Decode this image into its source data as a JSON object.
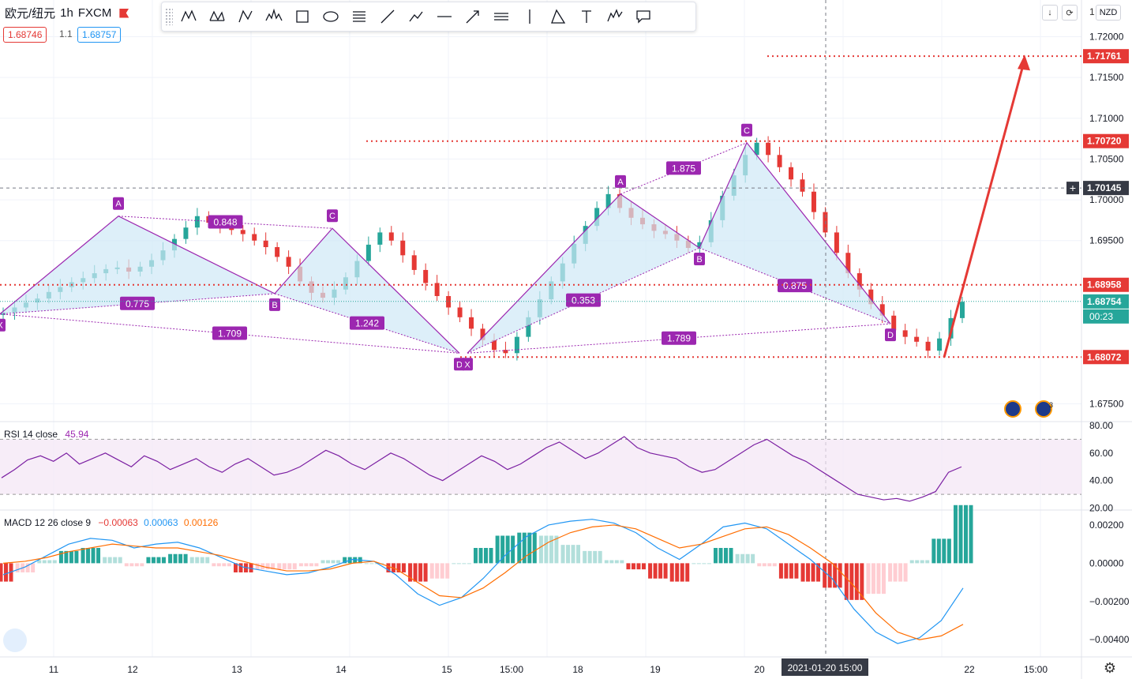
{
  "header": {
    "symbol": "欧元/纽元",
    "interval": "1h",
    "exchange": "FXCM",
    "bid": "1.68746",
    "spread": "1.1",
    "ask": "1.68757"
  },
  "toolbar": {
    "tools": [
      "xabcd-pattern-icon",
      "cypher-pattern-icon",
      "abcd-pattern-icon",
      "head-shoulders-icon",
      "rectangle-icon",
      "ellipse-icon",
      "fib-retracement-icon",
      "trend-line-icon",
      "path-icon",
      "horizontal-line-icon",
      "arrow-line-icon",
      "parallel-channel-icon",
      "vertical-line-icon",
      "triangle-pattern-icon",
      "text-icon",
      "elliott-wave-icon",
      "callout-icon"
    ]
  },
  "top_right": {
    "currency": "NZD",
    "partial_axis_label": "1"
  },
  "colors": {
    "purple": "#9c27b0",
    "purple_fill": "#cfe8f7",
    "red": "#e53935",
    "green": "#26a69a",
    "blue": "#2196f3",
    "orange": "#ff6d00",
    "axis_dark": "#363a45",
    "grid": "#f0f3fa"
  },
  "chart_data": [
    {
      "type": "candlestick",
      "title": "",
      "y_ticks": [
        "1.72000",
        "1.71500",
        "1.71000",
        "1.70500",
        "1.70000",
        "1.69500",
        "1.67500"
      ],
      "ylim": [
        1.673,
        1.7245
      ],
      "x_ticks": [
        "11",
        "12",
        "13",
        "14",
        "15",
        "15:00",
        "18",
        "19",
        "20",
        "22",
        "15:00"
      ],
      "price_labels": [
        {
          "value": 1.71761,
          "text": "1.71761",
          "color": "#e53935"
        },
        {
          "value": 1.7072,
          "text": "1.70720",
          "color": "#e53935"
        },
        {
          "value": 1.70145,
          "text": "1.70145",
          "color": "#363a45"
        },
        {
          "value": 1.68958,
          "text": "1.68958",
          "color": "#e53935"
        },
        {
          "value": 1.68754,
          "text": "1.68754",
          "color": "#26a69a"
        },
        {
          "value": 1.68072,
          "text": "1.68072",
          "color": "#e53935"
        }
      ],
      "countdown": "00:23",
      "crosshair_label": "2021-01-20   15:00",
      "series_close": [
        1.6862,
        1.6868,
        1.6874,
        1.6879,
        1.6887,
        1.6893,
        1.6899,
        1.6904,
        1.691,
        1.6915,
        1.6917,
        1.6912,
        1.6918,
        1.6926,
        1.6938,
        1.6952,
        1.6966,
        1.698,
        1.6972,
        1.6968,
        1.6963,
        1.6958,
        1.695,
        1.6942,
        1.693,
        1.6918,
        1.69,
        1.6886,
        1.688,
        1.689,
        1.6905,
        1.6925,
        1.6945,
        1.696,
        1.695,
        1.6932,
        1.6914,
        1.6898,
        1.6882,
        1.6868,
        1.6856,
        1.6842,
        1.6828,
        1.6816,
        1.6812,
        1.6832,
        1.6856,
        1.6878,
        1.69,
        1.6922,
        1.6946,
        1.6968,
        1.699,
        1.7007,
        1.699,
        1.6978,
        1.697,
        1.6962,
        1.6958,
        1.695,
        1.6941,
        1.6948,
        1.6975,
        1.7005,
        1.703,
        1.7055,
        1.707,
        1.7055,
        1.704,
        1.7025,
        1.701,
        1.6985,
        1.696,
        1.6935,
        1.691,
        1.689,
        1.6872,
        1.6858,
        1.684,
        1.6832,
        1.6826,
        1.6815,
        1.683,
        1.6855,
        1.6875
      ],
      "tick_values": [
        1.72,
        1.715,
        1.71,
        1.705,
        1.7,
        1.695,
        1.675
      ],
      "horizontal_lines": [
        1.7072,
        1.68958,
        1.68072,
        1.71761
      ],
      "patterns": [
        {
          "points": [
            [
              "X",
              1.686
            ],
            [
              "A",
              1.698
            ],
            [
              "B",
              1.6885
            ],
            [
              "C",
              1.6965
            ],
            [
              "D",
              1.6812
            ]
          ],
          "ratios": [
            {
              "text": "0.848"
            },
            {
              "text": "0.775"
            },
            {
              "text": "1.709"
            },
            {
              "text": "1.242"
            }
          ]
        },
        {
          "points": [
            [
              "X",
              1.6812
            ],
            [
              "A",
              1.7007
            ],
            [
              "B",
              1.6941
            ],
            [
              "C",
              1.707
            ],
            [
              "D",
              1.6848
            ]
          ],
          "ratios": [
            {
              "text": "1.875"
            },
            {
              "text": "0.353"
            },
            {
              "text": "1.789"
            },
            {
              "text": "0.875"
            }
          ]
        }
      ],
      "arrow": {
        "from": 1.6807,
        "to": 1.7176
      }
    },
    {
      "type": "line",
      "title": "RSI",
      "legend": {
        "name": "RSI",
        "params": "14 close",
        "value": "45.94"
      },
      "y_ticks": [
        "80.00",
        "60.00",
        "40.00",
        "20.00"
      ],
      "ylim": [
        20,
        80
      ],
      "band": [
        30,
        70
      ],
      "values": [
        42,
        48,
        55,
        58,
        54,
        60,
        52,
        56,
        60,
        55,
        50,
        58,
        54,
        48,
        52,
        56,
        50,
        46,
        52,
        56,
        50,
        44,
        46,
        50,
        56,
        62,
        58,
        52,
        48,
        54,
        60,
        56,
        50,
        44,
        40,
        46,
        52,
        58,
        54,
        48,
        52,
        58,
        64,
        68,
        62,
        56,
        60,
        66,
        72,
        64,
        60,
        58,
        56,
        50,
        46,
        48,
        54,
        60,
        66,
        70,
        64,
        58,
        54,
        48,
        42,
        36,
        30,
        28,
        26,
        27,
        25,
        28,
        32,
        46,
        50
      ]
    },
    {
      "type": "macd",
      "title": "MACD",
      "legend": {
        "name": "MACD",
        "params": "12 26 close 9",
        "values": [
          "−0.00063",
          "0.00063",
          "0.00126"
        ]
      },
      "y_ticks": [
        "0.00200",
        "0.00000",
        "−0.00200",
        "−0.00400"
      ],
      "ylim": [
        -0.0049,
        0.0027
      ],
      "macd": [
        -0.0006,
        -0.0002,
        0.0004,
        0.001,
        0.0013,
        0.0012,
        0.0008,
        0.001,
        0.0011,
        0.0008,
        0.0003,
        -0.0002,
        -0.0004,
        -0.0006,
        -0.0005,
        -0.0002,
        0.0002,
        0.0001,
        -0.0006,
        -0.0016,
        -0.0022,
        -0.0018,
        -0.0008,
        0.0004,
        0.0014,
        0.002,
        0.0022,
        0.0023,
        0.0021,
        0.0016,
        0.0008,
        0.0002,
        0.001,
        0.0019,
        0.0021,
        0.0018,
        0.001,
        0.0002,
        -0.0008,
        -0.0024,
        -0.0036,
        -0.0042,
        -0.0039,
        -0.003,
        -0.0013
      ],
      "signal": [
        0.0,
        0.0001,
        0.0003,
        0.0006,
        0.0008,
        0.001,
        0.0009,
        0.0008,
        0.0008,
        0.0006,
        0.0004,
        0.0001,
        -0.0002,
        -0.0004,
        -0.0004,
        -0.0003,
        0.0,
        0.0001,
        -0.0003,
        -0.001,
        -0.0017,
        -0.0018,
        -0.0013,
        -0.0005,
        0.0004,
        0.0011,
        0.0016,
        0.0019,
        0.002,
        0.0018,
        0.0013,
        0.0008,
        0.001,
        0.0014,
        0.0018,
        0.0019,
        0.0015,
        0.0008,
        0.0,
        -0.0012,
        -0.0026,
        -0.0036,
        -0.004,
        -0.0038,
        -0.0032
      ]
    }
  ]
}
